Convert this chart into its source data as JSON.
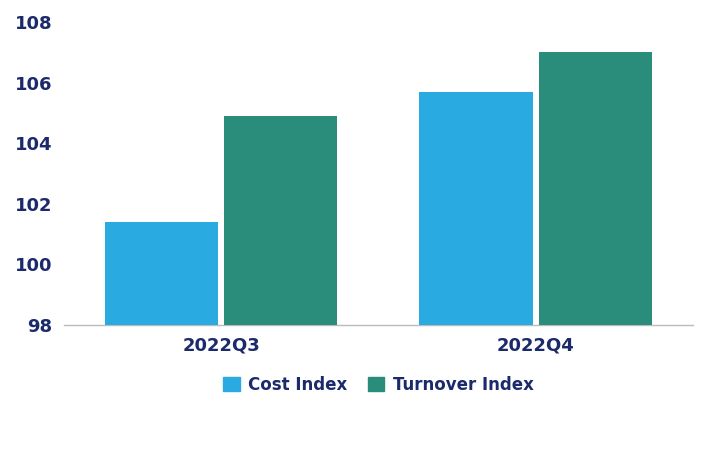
{
  "categories": [
    "2022Q3",
    "2022Q4"
  ],
  "cost_index": [
    101.4,
    105.7
  ],
  "turnover_index": [
    104.9,
    107.0
  ],
  "cost_color": "#29ABE2",
  "turnover_color": "#2A8C7A",
  "ylim": [
    98,
    108
  ],
  "yticks": [
    98,
    100,
    102,
    104,
    106,
    108
  ],
  "legend_labels": [
    "Cost Index",
    "Turnover Index"
  ],
  "bar_width": 0.18,
  "group_positions": [
    0.25,
    0.75
  ],
  "label_color": "#1B2A6B",
  "label_fontsize": 13,
  "tick_fontsize": 13,
  "legend_fontsize": 12,
  "background_color": "#ffffff"
}
